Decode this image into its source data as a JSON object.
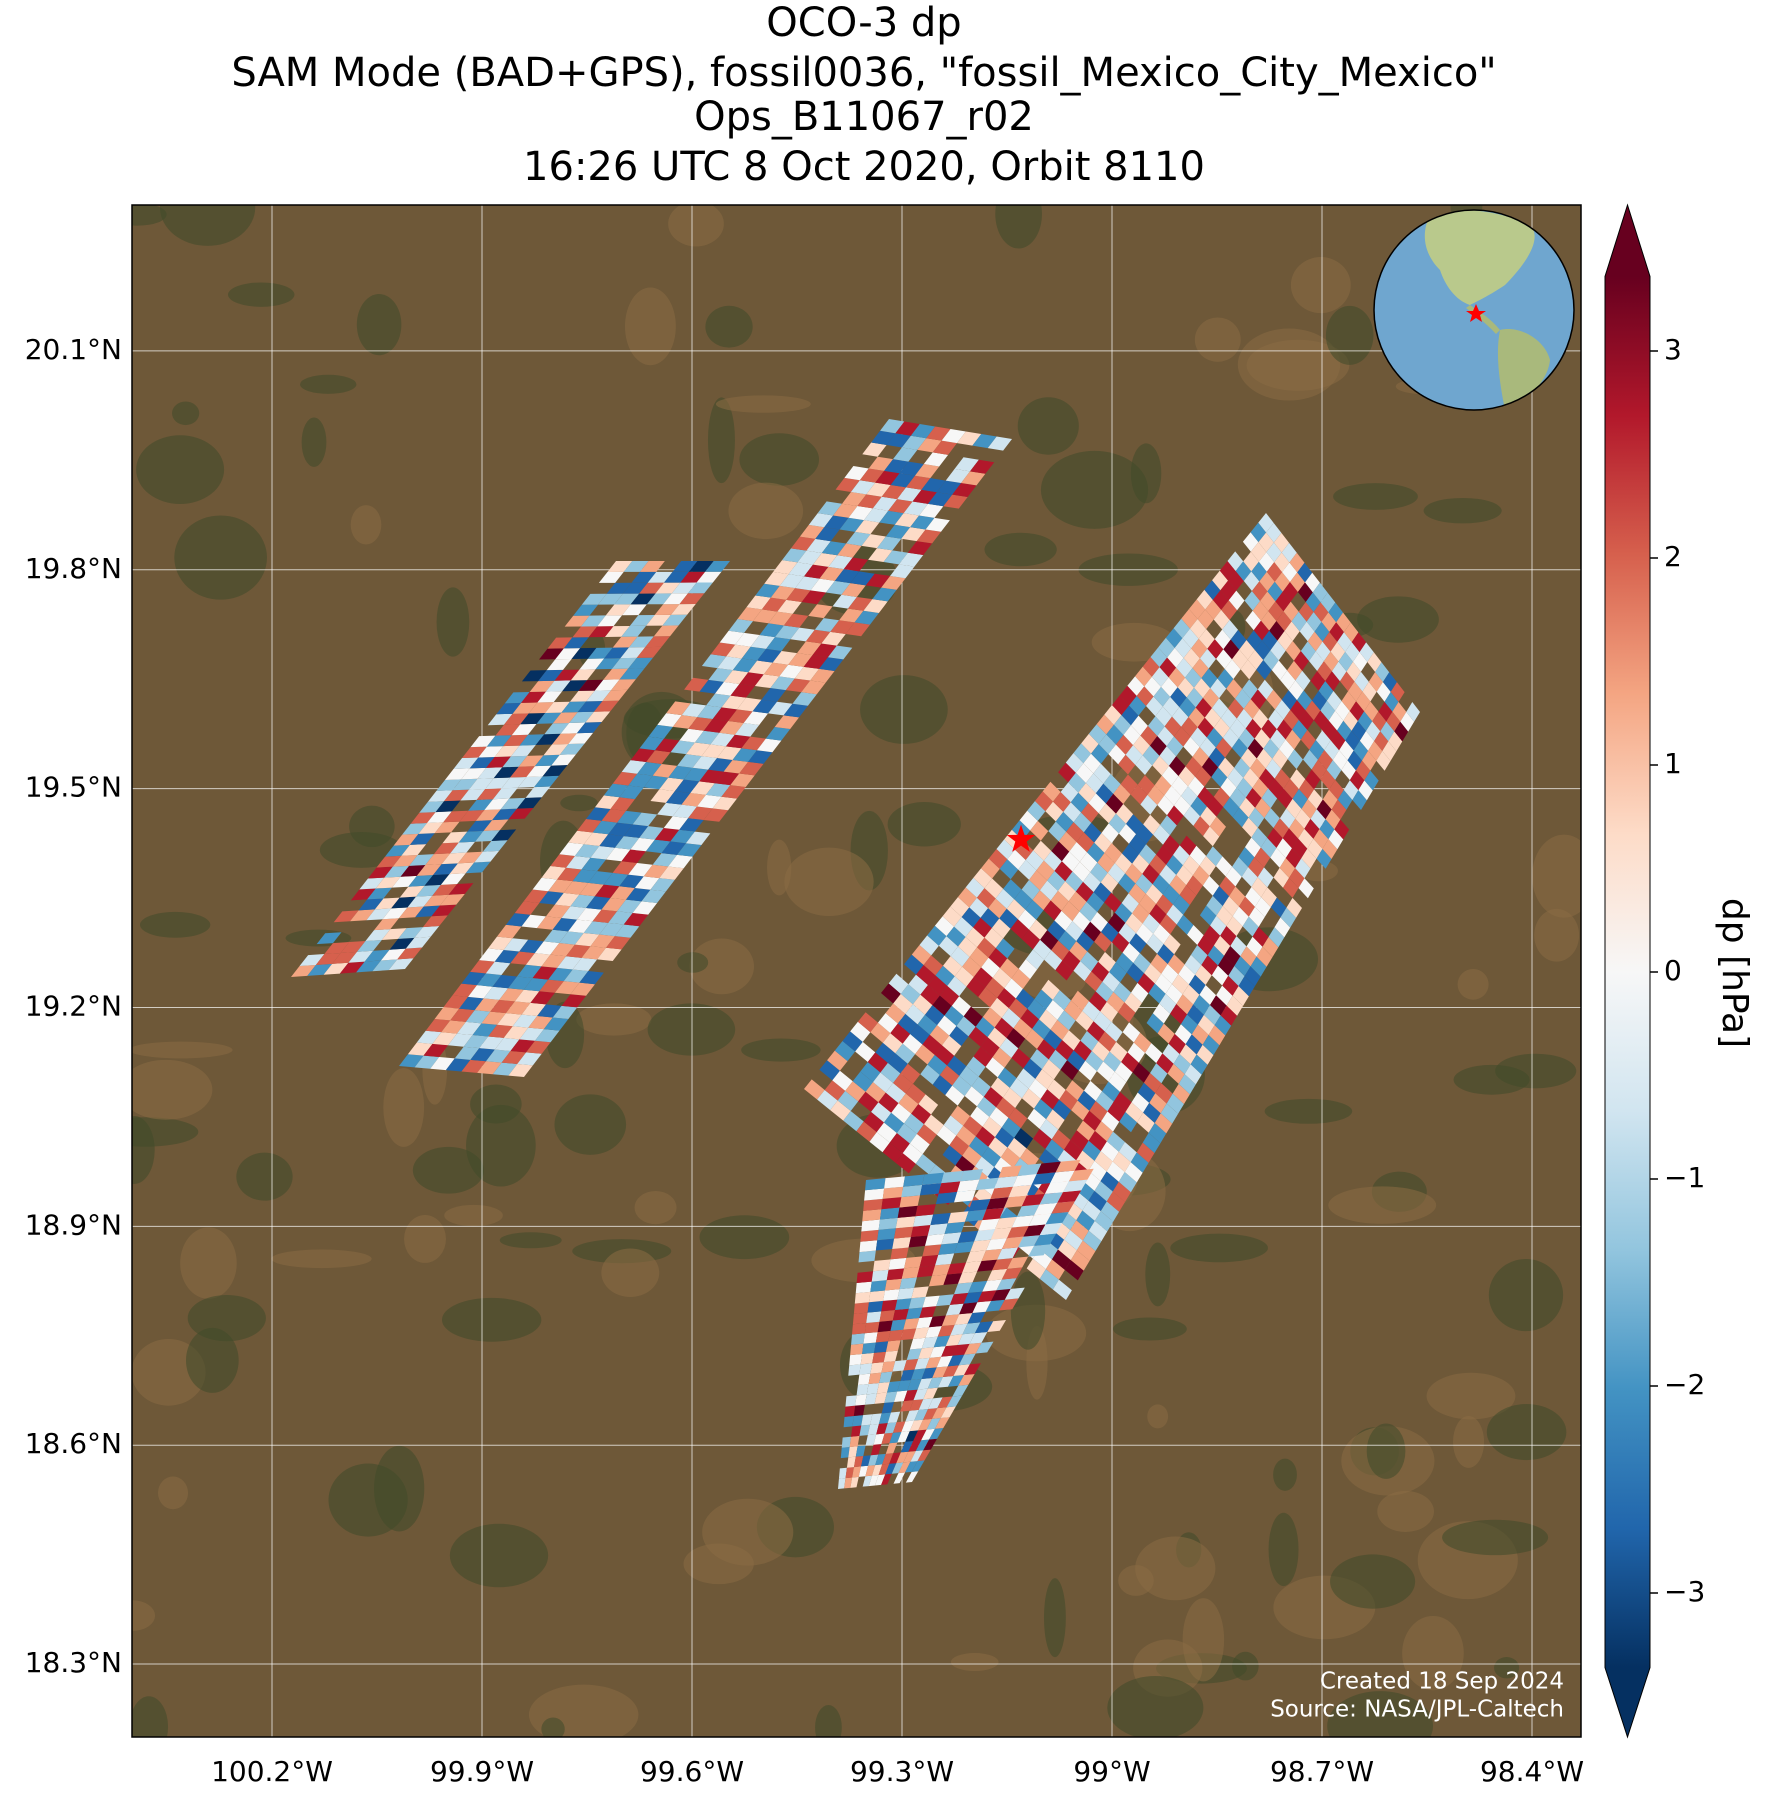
{
  "chart_data": {
    "type": "map",
    "title": [
      "OCO-3 dp",
      "SAM Mode (BAD+GPS), fossil0036, \"fossil_Mexico_City_Mexico\"",
      "Ops_B11067_r02",
      "16:26 UTC 8 Oct 2020, Orbit 8110"
    ],
    "xlim": [
      -100.4,
      -98.33
    ],
    "ylim": [
      18.2,
      20.3
    ],
    "xticks": [
      {
        "value": -100.2,
        "label": "100.2°W"
      },
      {
        "value": -99.9,
        "label": "99.9°W"
      },
      {
        "value": -99.6,
        "label": "99.6°W"
      },
      {
        "value": -99.3,
        "label": "99.3°W"
      },
      {
        "value": -99.0,
        "label": "99°W"
      },
      {
        "value": -98.7,
        "label": "98.7°W"
      },
      {
        "value": -98.4,
        "label": "98.4°W"
      }
    ],
    "yticks": [
      {
        "value": 18.3,
        "label": "18.3°N"
      },
      {
        "value": 18.6,
        "label": "18.6°N"
      },
      {
        "value": 18.9,
        "label": "18.9°N"
      },
      {
        "value": 19.2,
        "label": "19.2°N"
      },
      {
        "value": 19.5,
        "label": "19.5°N"
      },
      {
        "value": 19.8,
        "label": "19.8°N"
      },
      {
        "value": 20.1,
        "label": "20.1°N"
      }
    ],
    "grid": true,
    "colorbar": {
      "label": "dp [hPa]",
      "clim": [
        -3.36,
        3.36
      ],
      "ticks": [
        {
          "value": -3,
          "label": "−3"
        },
        {
          "value": -2,
          "label": "−2"
        },
        {
          "value": -1,
          "label": "−1"
        },
        0,
        1,
        2,
        3
      ],
      "colors": [
        "#053061",
        "#2166ac",
        "#4393c3",
        "#92c5de",
        "#d1e5f0",
        "#f7f7f7",
        "#fddbc7",
        "#f4a582",
        "#d6604d",
        "#b2182b",
        "#67001f"
      ]
    },
    "site": {
      "lon": -99.13,
      "lat": 19.43,
      "color": "#ff0000"
    },
    "annotations": [
      "Created 18 Sep 2024",
      "Source: NASA/JPL-Caltech"
    ]
  }
}
